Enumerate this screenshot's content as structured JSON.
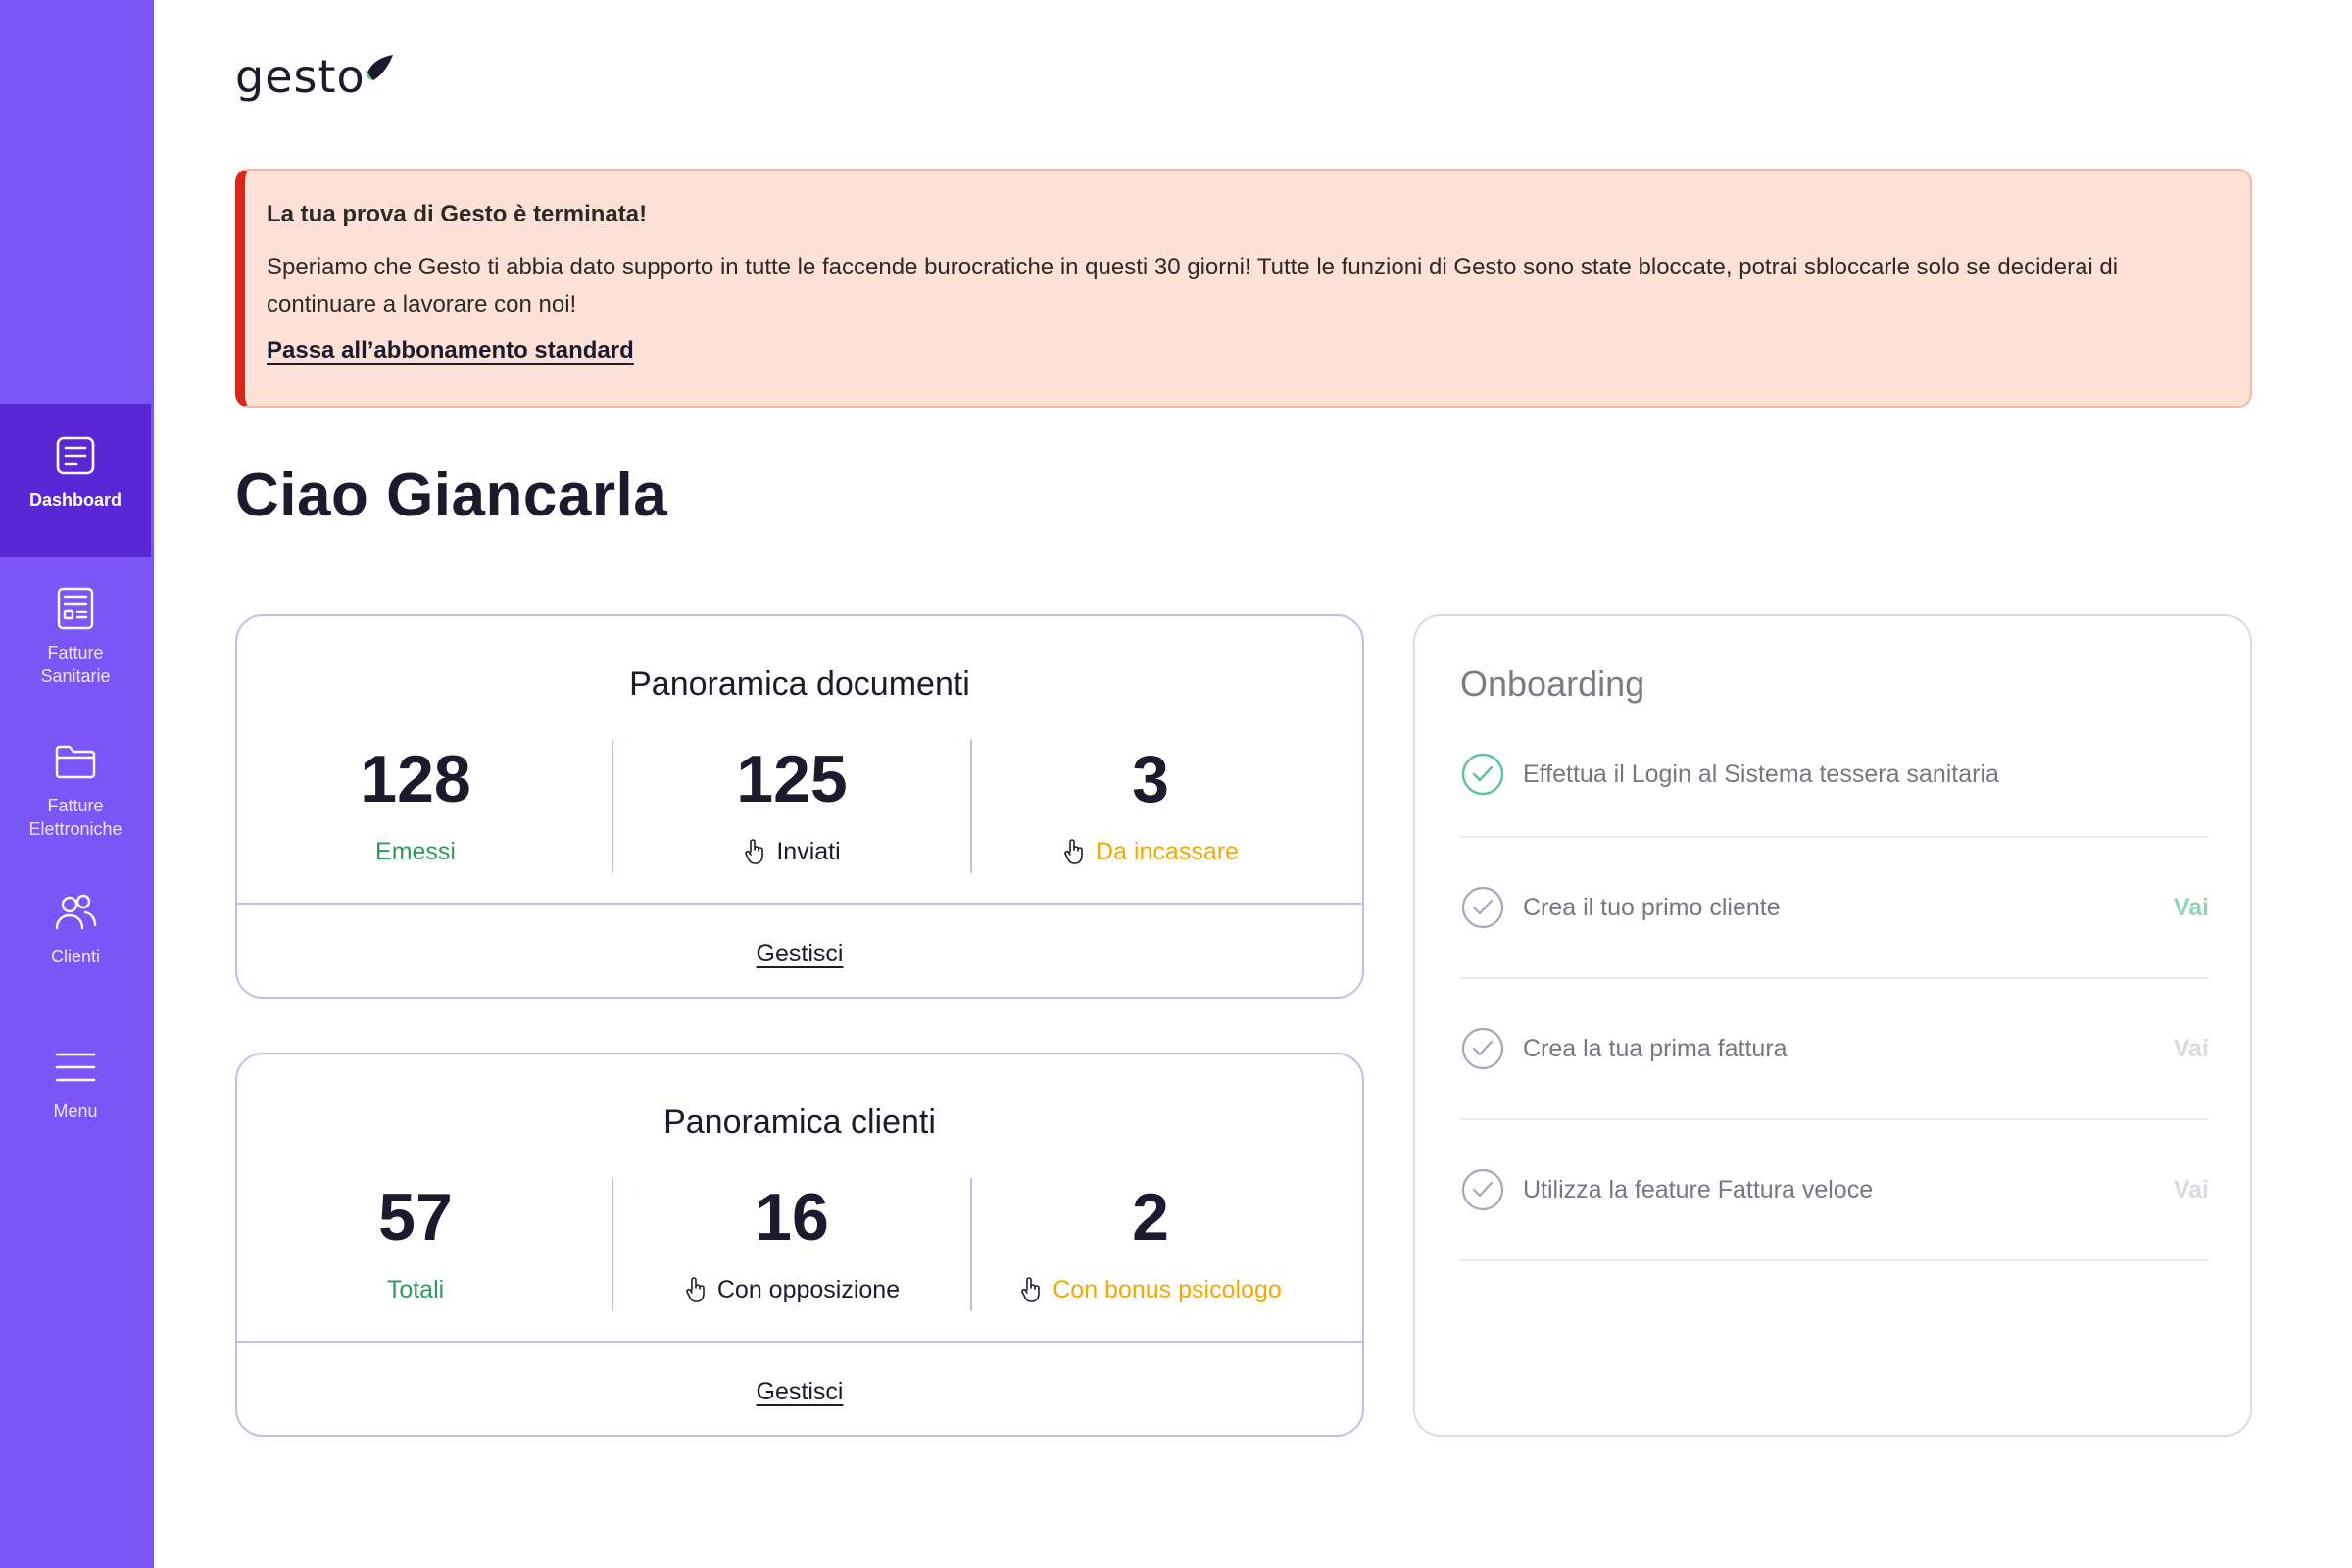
{
  "brand": {
    "name": "gesto"
  },
  "sidebar": {
    "items": [
      {
        "label": "Dashboard",
        "icon": "dashboard-icon",
        "active": true
      },
      {
        "label": "Fatture Sanitarie",
        "icon": "invoice-icon"
      },
      {
        "label": "Fatture Elettroniche",
        "icon": "folder-icon"
      },
      {
        "label": "Clienti",
        "icon": "users-icon"
      },
      {
        "label": "Menu",
        "icon": "menu-icon"
      }
    ]
  },
  "alert": {
    "title": "La tua prova di Gesto è terminata!",
    "body": "Speriamo che Gesto ti abbia dato supporto in tutte le faccende burocratiche in questi 30 giorni! Tutte le funzioni di Gesto sono state bloccate, potrai sbloccarle solo se deciderai di continuare a lavorare con noi!",
    "link": "Passa all’abbonamento standard"
  },
  "greeting": "Ciao Giancarla",
  "documents": {
    "title": "Panoramica documenti",
    "stats": [
      {
        "value": "128",
        "label": "Emessi"
      },
      {
        "value": "125",
        "label": "Inviati"
      },
      {
        "value": "3",
        "label": "Da incassare"
      }
    ],
    "action": "Gestisci"
  },
  "clients": {
    "title": "Panoramica clienti",
    "stats": [
      {
        "value": "57",
        "label": "Totali"
      },
      {
        "value": "16",
        "label": "Con opposizione"
      },
      {
        "value": "2",
        "label": "Con bonus psicologo"
      }
    ],
    "action": "Gestisci"
  },
  "onboarding": {
    "title": "Onboarding",
    "steps": [
      {
        "text": "Effettua il Login al Sistema tessera sanitaria",
        "done": true,
        "action": ""
      },
      {
        "text": "Crea il tuo primo cliente",
        "done": false,
        "action": "Vai",
        "enabled": true
      },
      {
        "text": "Crea la tua prima fattura",
        "done": false,
        "action": "Vai",
        "enabled": false
      },
      {
        "text": "Utilizza la feature Fattura veloce",
        "done": false,
        "action": "Vai",
        "enabled": false
      }
    ]
  },
  "colors": {
    "sidebar": "#7b55f5",
    "sidebar_active": "#5a27d4",
    "alert_bg": "#fde1d6",
    "alert_accent": "#d8261c",
    "green": "#2f9a5e",
    "orange": "#f5a800"
  }
}
